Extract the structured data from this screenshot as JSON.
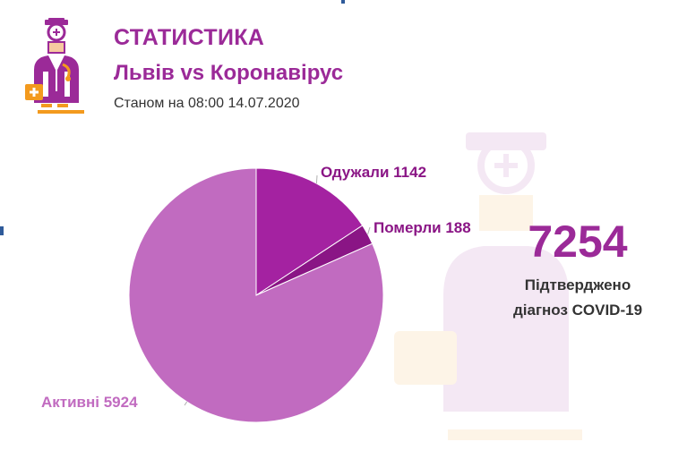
{
  "header": {
    "title": "СТАТИСТИКА",
    "subtitle": "Львів vs Коронавірус",
    "date": "Станом на 08:00 14.07.2020"
  },
  "summary": {
    "total": "7254",
    "label_line1": "Підтверджено",
    "label_line2": "діагноз COVID-19"
  },
  "icons": {
    "logo": "doctor-icon",
    "watermark": "doctor-watermark-icon"
  },
  "colors": {
    "accent": "#9b2a98",
    "recovered": "#a422a1",
    "deaths": "#8a1585",
    "active": "#c16bc0",
    "logo_orange": "#f39a1e"
  },
  "chart_data": {
    "type": "pie",
    "slices": [
      {
        "label": "Одужали",
        "value": 1142,
        "text": "Одужали 1142",
        "color": "#a422a1"
      },
      {
        "label": "Померли",
        "value": 188,
        "text": "Померли 188",
        "color": "#8a1585"
      },
      {
        "label": "Активні",
        "value": 5924,
        "text": "Активні 5924",
        "color": "#c16bc0"
      }
    ]
  }
}
